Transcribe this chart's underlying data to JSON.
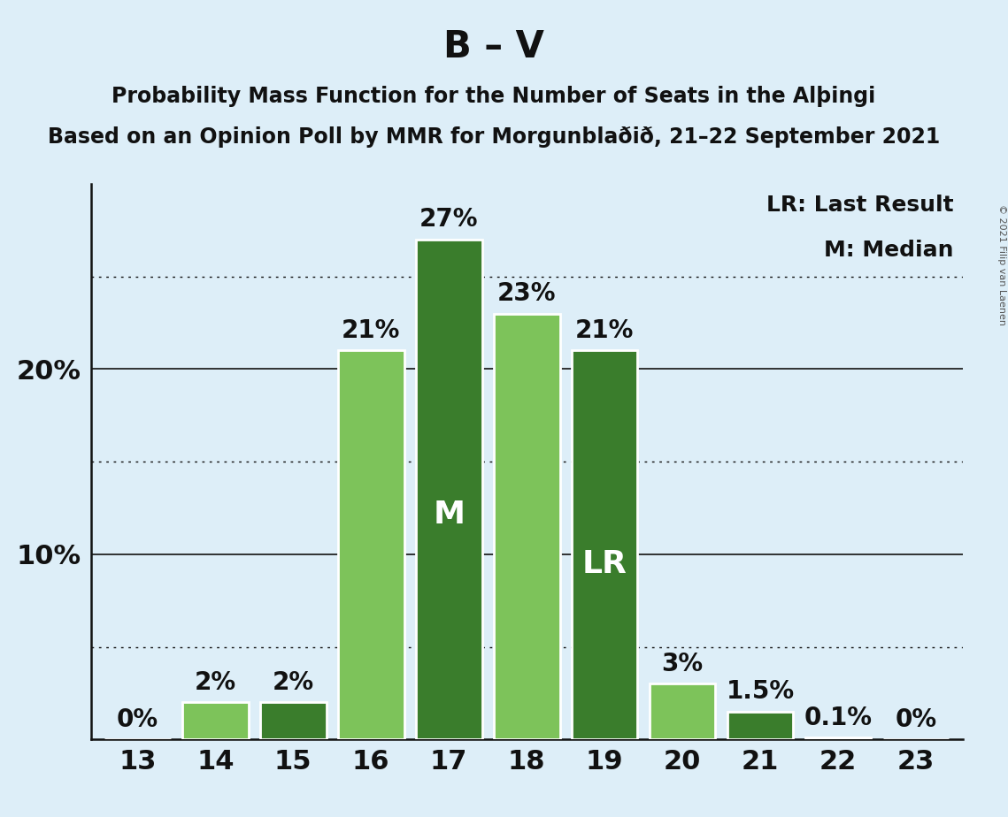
{
  "title_main": "B – V",
  "subtitle1": "Probability Mass Function for the Number of Seats in the Alþingi",
  "subtitle2": "Based on an Opinion Poll by MMR for Morgunblaðið, 21–22 September 2021",
  "copyright": "© 2021 Filip van Laenen",
  "seats": [
    13,
    14,
    15,
    16,
    17,
    18,
    19,
    20,
    21,
    22,
    23
  ],
  "values": [
    0.0,
    2.0,
    2.0,
    21.0,
    27.0,
    23.0,
    21.0,
    3.0,
    1.5,
    0.1,
    0.0
  ],
  "labels": [
    "0%",
    "2%",
    "2%",
    "21%",
    "27%",
    "23%",
    "21%",
    "3%",
    "1.5%",
    "0.1%",
    "0%"
  ],
  "colors": [
    "#7dc35a",
    "#7dc35a",
    "#3a7d2c",
    "#7dc35a",
    "#3a7d2c",
    "#7dc35a",
    "#3a7d2c",
    "#7dc35a",
    "#3a7d2c",
    "#7dc35a",
    "#7dc35a"
  ],
  "median_seat": 17,
  "lr_seat": 19,
  "background_color": "#ddeef8",
  "bar_edge_color": "white",
  "dotted_lines": [
    5,
    15,
    25
  ],
  "solid_lines": [
    10,
    20
  ],
  "legend_lr": "LR: Last Result",
  "legend_m": "M: Median",
  "light_green": "#7dc35a",
  "dark_green": "#3a7d2c",
  "title_fontsize": 30,
  "subtitle_fontsize": 17,
  "label_fontsize": 20,
  "ytick_fontsize": 22,
  "xtick_fontsize": 22,
  "inner_label_fontsize": 26,
  "legend_fontsize": 18,
  "ylim": [
    0,
    30
  ],
  "xlim_min": 12.4,
  "xlim_max": 23.6
}
